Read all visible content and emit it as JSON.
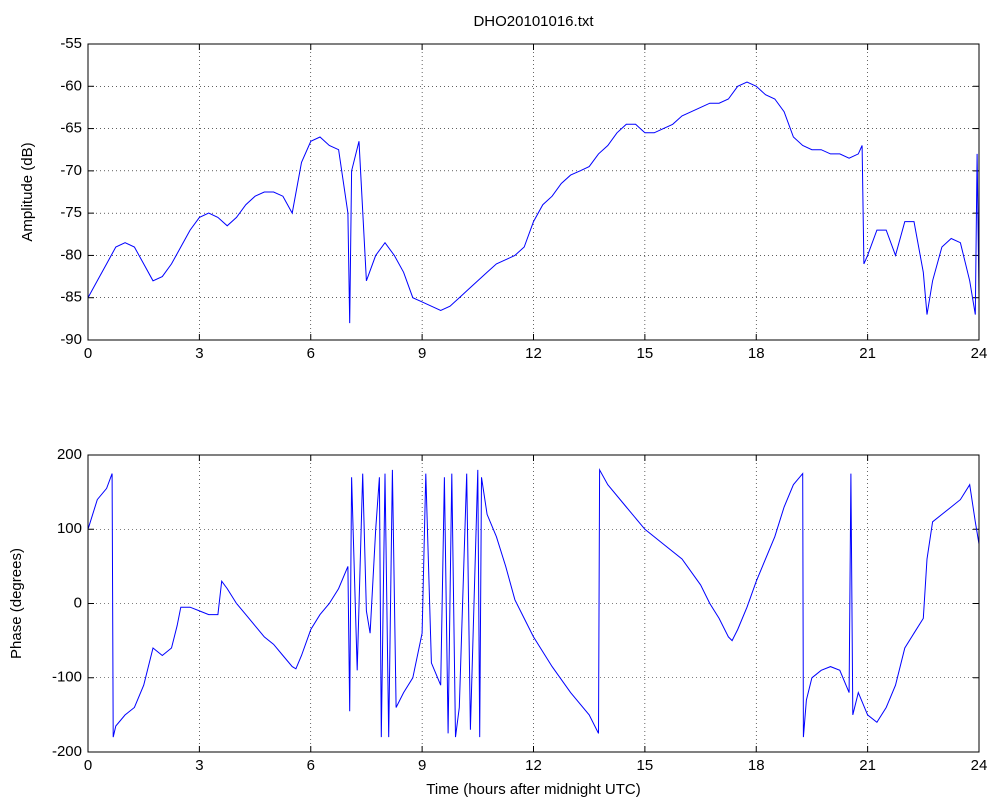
{
  "chart_data": [
    {
      "type": "line",
      "title": "DHO20101016.txt",
      "ylabel": "Amplitude (dB)",
      "color": "#0000ff",
      "grid": true,
      "xlim": [
        0,
        24
      ],
      "xticks": [
        0,
        3,
        6,
        9,
        12,
        15,
        18,
        21,
        24
      ],
      "ylim": [
        -90,
        -55
      ],
      "yticks": [
        -90,
        -85,
        -80,
        -75,
        -70,
        -65,
        -60,
        -55
      ],
      "x": [
        0,
        0.25,
        0.5,
        0.75,
        1,
        1.25,
        1.5,
        1.75,
        2,
        2.25,
        2.5,
        2.75,
        3,
        3.25,
        3.5,
        3.75,
        4,
        4.25,
        4.5,
        4.75,
        5,
        5.25,
        5.5,
        5.75,
        6,
        6.25,
        6.5,
        6.75,
        7,
        7.05,
        7.1,
        7.3,
        7.5,
        7.75,
        8,
        8.25,
        8.5,
        8.75,
        9,
        9.25,
        9.5,
        9.75,
        10,
        10.25,
        10.5,
        10.75,
        11,
        11.25,
        11.5,
        11.75,
        12,
        12.25,
        12.5,
        12.75,
        13,
        13.25,
        13.5,
        13.75,
        14,
        14.25,
        14.5,
        14.75,
        15,
        15.25,
        15.5,
        15.75,
        16,
        16.25,
        16.5,
        16.75,
        17,
        17.25,
        17.5,
        17.75,
        18,
        18.25,
        18.5,
        18.75,
        19,
        19.25,
        19.5,
        19.75,
        20,
        20.25,
        20.5,
        20.75,
        20.85,
        20.9,
        21,
        21.25,
        21.5,
        21.75,
        22,
        22.25,
        22.5,
        22.6,
        22.75,
        23,
        23.25,
        23.5,
        23.75,
        23.9,
        23.95,
        24
      ],
      "values": [
        -85,
        -83,
        -81,
        -79,
        -78.5,
        -79,
        -81,
        -83,
        -82.5,
        -81,
        -79,
        -77,
        -75.5,
        -75,
        -75.5,
        -76.5,
        -75.5,
        -74,
        -73,
        -72.5,
        -72.5,
        -73,
        -75,
        -69,
        -66.5,
        -66,
        -67,
        -67.5,
        -75,
        -88,
        -70,
        -66.5,
        -83,
        -80,
        -78.5,
        -80,
        -82,
        -85,
        -85.5,
        -86,
        -86.5,
        -86,
        -85,
        -84,
        -83,
        -82,
        -81,
        -80.5,
        -80,
        -79,
        -76,
        -74,
        -73,
        -71.5,
        -70.5,
        -70,
        -69.5,
        -68,
        -67,
        -65.5,
        -64.5,
        -64.5,
        -65.5,
        -65.5,
        -65,
        -64.5,
        -63.5,
        -63,
        -62.5,
        -62,
        -62,
        -61.5,
        -60,
        -59.5,
        -60,
        -61,
        -61.5,
        -63,
        -66,
        -67,
        -67.5,
        -67.5,
        -68,
        -68,
        -68.5,
        -68,
        -67,
        -81,
        -80,
        -77,
        -77,
        -80,
        -76,
        -76,
        -82,
        -87,
        -83,
        -79,
        -78,
        -78.5,
        -83,
        -87,
        -68,
        -85
      ]
    },
    {
      "type": "line",
      "ylabel": "Phase (degrees)",
      "xlabel": "Time (hours after midnight UTC)",
      "color": "#0000ff",
      "grid": true,
      "xlim": [
        0,
        24
      ],
      "xticks": [
        0,
        3,
        6,
        9,
        12,
        15,
        18,
        21,
        24
      ],
      "ylim": [
        -200,
        200
      ],
      "yticks": [
        -200,
        -100,
        0,
        100,
        200
      ],
      "x": [
        0,
        0.25,
        0.5,
        0.65,
        0.68,
        0.75,
        1,
        1.25,
        1.5,
        1.75,
        2,
        2.25,
        2.4,
        2.5,
        2.75,
        3,
        3.25,
        3.5,
        3.6,
        3.75,
        4,
        4.25,
        4.5,
        4.75,
        5,
        5.25,
        5.5,
        5.6,
        5.75,
        6,
        6.25,
        6.5,
        6.75,
        7,
        7.05,
        7.1,
        7.25,
        7.4,
        7.5,
        7.6,
        7.75,
        7.85,
        7.9,
        8,
        8.1,
        8.2,
        8.3,
        8.5,
        8.75,
        9,
        9.1,
        9.25,
        9.5,
        9.6,
        9.7,
        9.8,
        9.9,
        10,
        10.2,
        10.3,
        10.5,
        10.55,
        10.6,
        10.75,
        11,
        11.25,
        11.5,
        11.75,
        12,
        12.5,
        13,
        13.5,
        13.75,
        13.78,
        14,
        14.5,
        15,
        15.5,
        16,
        16.5,
        16.75,
        17,
        17.25,
        17.35,
        17.5,
        17.75,
        18,
        18.5,
        18.75,
        19,
        19.25,
        19.27,
        19.35,
        19.5,
        19.75,
        20,
        20.25,
        20.5,
        20.55,
        20.6,
        20.75,
        21,
        21.25,
        21.5,
        21.75,
        22,
        22.25,
        22.5,
        22.6,
        22.75,
        23,
        23.25,
        23.5,
        23.75,
        23.9,
        24
      ],
      "values": [
        100,
        140,
        155,
        175,
        -180,
        -165,
        -150,
        -140,
        -110,
        -60,
        -70,
        -60,
        -30,
        -5,
        -5,
        -10,
        -15,
        -15,
        30,
        20,
        0,
        -15,
        -30,
        -45,
        -55,
        -70,
        -85,
        -88,
        -70,
        -35,
        -15,
        0,
        20,
        50,
        -145,
        170,
        -90,
        175,
        -10,
        -40,
        100,
        170,
        -180,
        175,
        -180,
        180,
        -140,
        -120,
        -100,
        -40,
        175,
        -80,
        -110,
        170,
        -175,
        175,
        -180,
        -140,
        175,
        -170,
        180,
        -180,
        170,
        120,
        90,
        50,
        5,
        -20,
        -45,
        -85,
        -120,
        -150,
        -175,
        180,
        160,
        130,
        100,
        80,
        60,
        25,
        0,
        -20,
        -45,
        -50,
        -35,
        -5,
        30,
        90,
        130,
        160,
        175,
        -180,
        -130,
        -100,
        -90,
        -85,
        -90,
        -120,
        175,
        -150,
        -120,
        -150,
        -160,
        -140,
        -110,
        -60,
        -40,
        -20,
        60,
        110,
        120,
        130,
        140,
        160,
        110,
        80
      ]
    }
  ]
}
